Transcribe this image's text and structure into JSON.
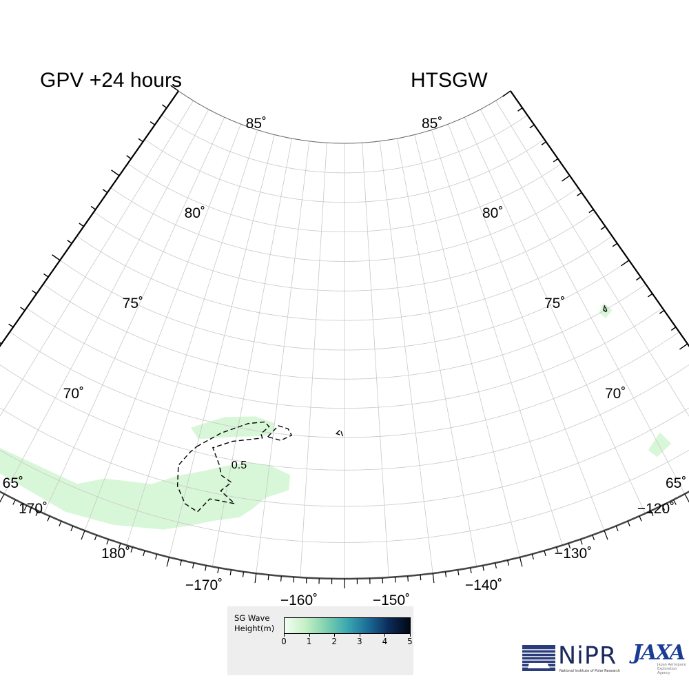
{
  "titles": {
    "left": "GPV +24 hours",
    "right": "HTSGW"
  },
  "map": {
    "projection": "polar stereographic sector",
    "lon_range": [
      170,
      -120
    ],
    "lat_range": [
      65,
      85
    ],
    "lat_labels_left": [
      "85˚",
      "80˚",
      "75˚",
      "70˚",
      "65˚"
    ],
    "lat_labels_right": [
      "85˚",
      "80˚",
      "75˚",
      "70˚",
      "65˚"
    ],
    "lon_labels": [
      "170˚",
      "180˚",
      "−170˚",
      "−160˚",
      "−150˚",
      "−140˚",
      "−130˚",
      "−120˚"
    ],
    "contour_label": "0.5",
    "fill_color": "#d8f7d8",
    "contour_color": "#000000",
    "grid_color": "#c8c8c8"
  },
  "legend": {
    "label_line1": "SG Wave",
    "label_line2": "Height(m)",
    "ticks": [
      "0",
      "1",
      "2",
      "3",
      "4",
      "5"
    ],
    "colors": [
      "#f4fdf4",
      "#c4f0c4",
      "#7ed0b0",
      "#3aa8b0",
      "#1c6a98",
      "#0c2a58",
      "#020814"
    ]
  },
  "logos": {
    "nipr_text": "NiPR",
    "nipr_sub": "National Institute of Polar Research",
    "nipr_icon": "nipr-logo-icon",
    "jaxa_text": "JAXA",
    "jaxa_sub": "Japan Aerospace Exploration Agency"
  }
}
